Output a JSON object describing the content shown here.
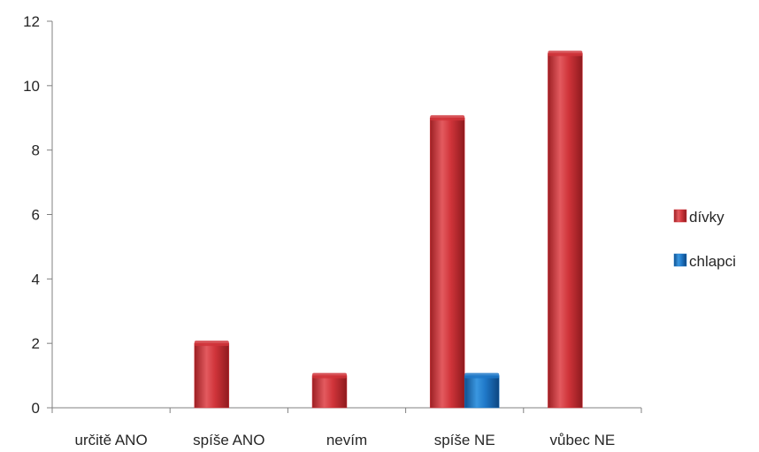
{
  "chart_data": {
    "type": "bar",
    "categories": [
      "určitě ANO",
      "spíše ANO",
      "nevím",
      "spíše NE",
      "vůbec NE"
    ],
    "series": [
      {
        "name": "dívky",
        "values": [
          0,
          2,
          1,
          9,
          11
        ],
        "color": "#d0343a"
      },
      {
        "name": "chlapci",
        "values": [
          0,
          0,
          0,
          1,
          0
        ],
        "color": "#1f78c8"
      }
    ],
    "ylim": [
      0,
      12
    ],
    "yticks": [
      0,
      2,
      4,
      6,
      8,
      10,
      12
    ],
    "grid": false,
    "legend_position": "right"
  }
}
